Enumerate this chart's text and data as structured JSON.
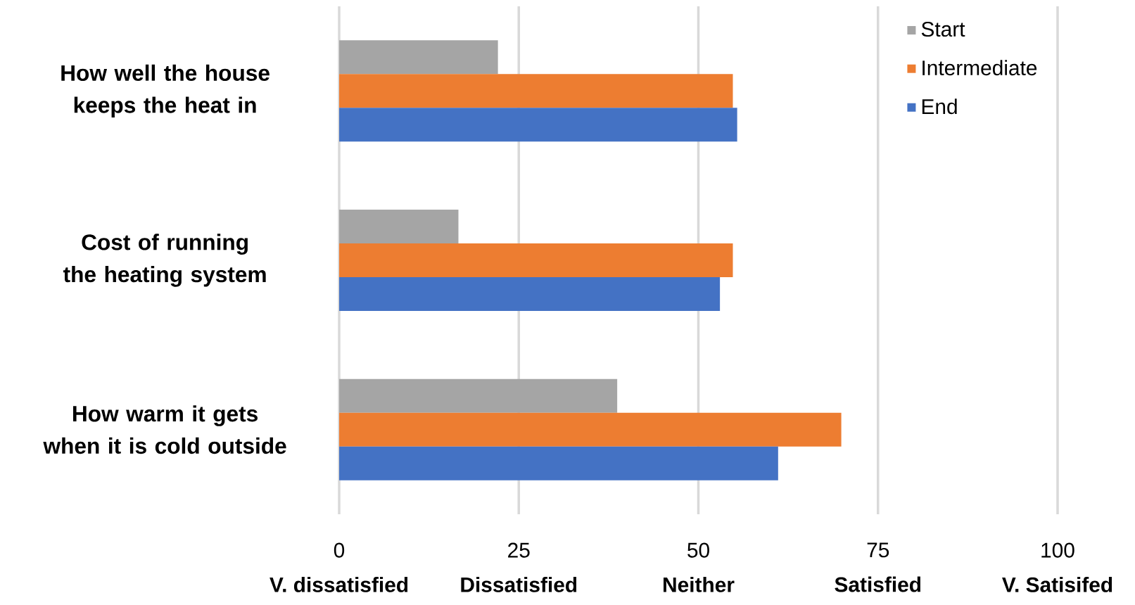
{
  "chart_data": {
    "type": "bar",
    "orientation": "horizontal",
    "categories": [
      "How well the house keeps the heat in",
      "Cost of running the heating system",
      "How warm it gets when it is cold outside"
    ],
    "series": [
      {
        "name": "Start",
        "color": "#a5a5a5",
        "values": [
          22.1,
          16.6,
          38.7
        ]
      },
      {
        "name": "Intermediate",
        "color": "#ed7d31",
        "values": [
          54.8,
          54.8,
          69.9
        ]
      },
      {
        "name": "End",
        "color": "#4472c4",
        "values": [
          55.4,
          53.0,
          61.1
        ]
      }
    ],
    "xlim": [
      0,
      100
    ],
    "xticks": [
      {
        "value": 0,
        "label": "0\n**V. dissatisfied**"
      },
      {
        "value": 25,
        "label": "25\n**Dissatisfied**"
      },
      {
        "value": 50,
        "label": "50\n**Neither**"
      },
      {
        "value": 75,
        "label": "75\n**Satisfied**"
      },
      {
        "value": 100,
        "label": "100\n**V. Satisifed**"
      }
    ],
    "grid": "x",
    "legend": "top right"
  }
}
